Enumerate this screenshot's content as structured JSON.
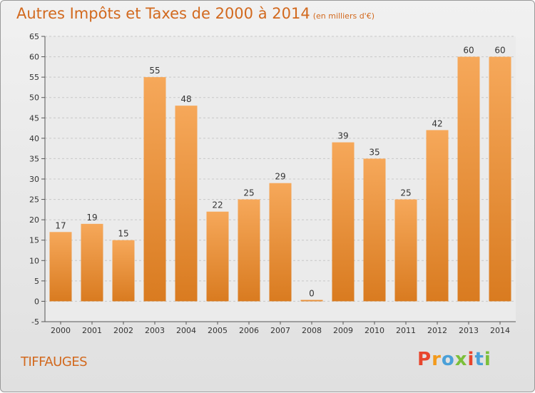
{
  "header": {
    "title": "Autres Impôts et Taxes de 2000 à 2014",
    "subtitle": "(en milliers d'€)"
  },
  "footer": {
    "commune": "TIFFAUGES",
    "brand": "Proxiti"
  },
  "colors": {
    "title": "#d2691e",
    "bar_light": "#f6a85a",
    "bar_dark": "#d97b20",
    "brand_letters": [
      "#e8462d",
      "#f39a1c",
      "#4aa0d8",
      "#7bbf3a",
      "#e8462d",
      "#4aa0d8",
      "#7bbf3a"
    ]
  },
  "chart_data": {
    "type": "bar",
    "categories": [
      "2000",
      "2001",
      "2002",
      "2003",
      "2004",
      "2005",
      "2006",
      "2007",
      "2008",
      "2009",
      "2010",
      "2011",
      "2012",
      "2013",
      "2014"
    ],
    "values": [
      17,
      19,
      15,
      55,
      48,
      22,
      25,
      29,
      0,
      39,
      35,
      25,
      42,
      60,
      60
    ],
    "data_labels": [
      "17",
      "19",
      "15",
      "55",
      "48",
      "22",
      "25",
      "29",
      "0",
      "39",
      "35",
      "25",
      "42",
      "60",
      "60"
    ],
    "yticks": [
      "-5",
      "0",
      "5",
      "10",
      "15",
      "20",
      "25",
      "30",
      "35",
      "40",
      "45",
      "50",
      "55",
      "60",
      "65"
    ],
    "ylim": [
      -5,
      65
    ],
    "grid": true,
    "legend": "none"
  }
}
